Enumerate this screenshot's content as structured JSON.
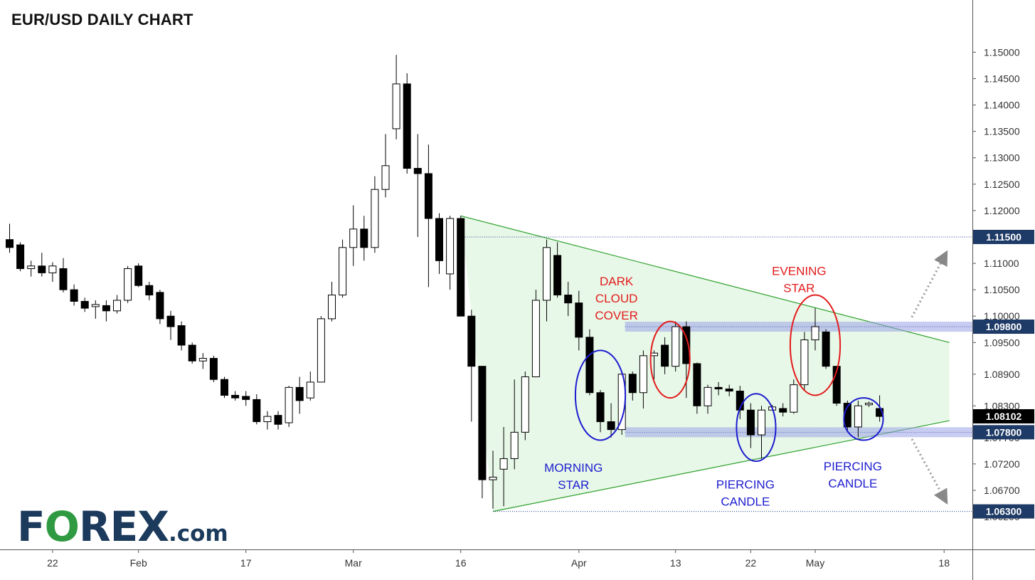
{
  "title": "EUR/USD DAILY CHART",
  "logo": {
    "part1": "F",
    "o": "O",
    "part2": "REX",
    "suffix": ".com"
  },
  "colors": {
    "bull_fill": "#ffffff",
    "bear_fill": "#000000",
    "triangle_line": "#2ca02c",
    "triangle_fill": "#e8f8e8",
    "zone": "#9aa3e6",
    "bearish_pattern": "#e21b1b",
    "bullish_pattern": "#1c1ccf",
    "price_tag": "#1e3a66",
    "last_tag": "#000000"
  },
  "chart_data": {
    "type": "candlestick",
    "title": "EUR/USD DAILY CHART",
    "ylim": [
      1.0585,
      1.1545
    ],
    "y_ticks": [
      "1.06200",
      "1.06700",
      "1.07200",
      "1.07700",
      "1.08300",
      "1.08900",
      "1.09500",
      "1.10000",
      "1.10500",
      "1.11000",
      "1.11500",
      "1.12000",
      "1.12500",
      "1.13000",
      "1.13500",
      "1.14000",
      "1.14500",
      "1.15000"
    ],
    "x_ticks": [
      "22",
      "Feb",
      "17",
      "Mar",
      "16",
      "Apr",
      "13",
      "22",
      "May",
      "18"
    ],
    "x_tick_index": [
      4,
      12,
      22,
      32,
      42,
      53,
      62,
      69,
      75,
      87
    ],
    "candles": [
      {
        "o": 1.1145,
        "h": 1.1175,
        "l": 1.112,
        "c": 1.113
      },
      {
        "o": 1.1135,
        "h": 1.114,
        "l": 1.1085,
        "c": 1.109
      },
      {
        "o": 1.109,
        "h": 1.1105,
        "l": 1.1075,
        "c": 1.1095
      },
      {
        "o": 1.1095,
        "h": 1.112,
        "l": 1.1075,
        "c": 1.1082
      },
      {
        "o": 1.1082,
        "h": 1.1102,
        "l": 1.1065,
        "c": 1.1095
      },
      {
        "o": 1.109,
        "h": 1.111,
        "l": 1.1045,
        "c": 1.105
      },
      {
        "o": 1.105,
        "h": 1.106,
        "l": 1.102,
        "c": 1.1028
      },
      {
        "o": 1.1028,
        "h": 1.1035,
        "l": 1.1008,
        "c": 1.1015
      },
      {
        "o": 1.1018,
        "h": 1.103,
        "l": 1.0995,
        "c": 1.1022
      },
      {
        "o": 1.102,
        "h": 1.103,
        "l": 1.099,
        "c": 1.101
      },
      {
        "o": 1.101,
        "h": 1.104,
        "l": 1.1005,
        "c": 1.103
      },
      {
        "o": 1.103,
        "h": 1.1095,
        "l": 1.1025,
        "c": 1.109
      },
      {
        "o": 1.1095,
        "h": 1.11,
        "l": 1.1055,
        "c": 1.1058
      },
      {
        "o": 1.1058,
        "h": 1.1065,
        "l": 1.103,
        "c": 1.104
      },
      {
        "o": 1.1045,
        "h": 1.105,
        "l": 1.0985,
        "c": 1.0995
      },
      {
        "o": 1.1,
        "h": 1.101,
        "l": 1.0955,
        "c": 1.098
      },
      {
        "o": 1.0982,
        "h": 1.099,
        "l": 1.0935,
        "c": 1.0945
      },
      {
        "o": 1.0945,
        "h": 1.095,
        "l": 1.091,
        "c": 1.0915
      },
      {
        "o": 1.0915,
        "h": 1.093,
        "l": 1.09,
        "c": 1.092
      },
      {
        "o": 1.092,
        "h": 1.0925,
        "l": 1.0875,
        "c": 1.088
      },
      {
        "o": 1.088,
        "h": 1.0885,
        "l": 1.0845,
        "c": 1.085
      },
      {
        "o": 1.085,
        "h": 1.0858,
        "l": 1.084,
        "c": 1.0845
      },
      {
        "o": 1.0848,
        "h": 1.0858,
        "l": 1.083,
        "c": 1.0842
      },
      {
        "o": 1.0842,
        "h": 1.0852,
        "l": 1.0795,
        "c": 1.08
      },
      {
        "o": 1.08,
        "h": 1.082,
        "l": 1.0785,
        "c": 1.081
      },
      {
        "o": 1.0812,
        "h": 1.082,
        "l": 1.0785,
        "c": 1.0795
      },
      {
        "o": 1.0798,
        "h": 1.0868,
        "l": 1.079,
        "c": 1.0865
      },
      {
        "o": 1.0865,
        "h": 1.0885,
        "l": 1.0815,
        "c": 1.084
      },
      {
        "o": 1.0845,
        "h": 1.0895,
        "l": 1.084,
        "c": 1.0875
      },
      {
        "o": 1.0875,
        "h": 1.1,
        "l": 1.0875,
        "c": 1.0995
      },
      {
        "o": 1.0995,
        "h": 1.1065,
        "l": 1.099,
        "c": 1.104
      },
      {
        "o": 1.104,
        "h": 1.1145,
        "l": 1.1035,
        "c": 1.113
      },
      {
        "o": 1.113,
        "h": 1.121,
        "l": 1.1095,
        "c": 1.1165
      },
      {
        "o": 1.1165,
        "h": 1.119,
        "l": 1.1105,
        "c": 1.113
      },
      {
        "o": 1.113,
        "h": 1.1265,
        "l": 1.112,
        "c": 1.124
      },
      {
        "o": 1.124,
        "h": 1.1345,
        "l": 1.1225,
        "c": 1.1285
      },
      {
        "o": 1.1355,
        "h": 1.1495,
        "l": 1.1335,
        "c": 1.144
      },
      {
        "o": 1.144,
        "h": 1.146,
        "l": 1.127,
        "c": 1.128
      },
      {
        "o": 1.128,
        "h": 1.1345,
        "l": 1.115,
        "c": 1.127
      },
      {
        "o": 1.127,
        "h": 1.1325,
        "l": 1.1055,
        "c": 1.1185
      },
      {
        "o": 1.1185,
        "h": 1.1195,
        "l": 1.108,
        "c": 1.1105
      },
      {
        "o": 1.108,
        "h": 1.119,
        "l": 1.105,
        "c": 1.1185
      },
      {
        "o": 1.1185,
        "h": 1.119,
        "l": 1.1,
        "c": 1.1
      },
      {
        "o": 1.1,
        "h": 1.1012,
        "l": 1.08,
        "c": 1.0905
      },
      {
        "o": 1.0905,
        "h": 1.0905,
        "l": 1.0655,
        "c": 1.069
      },
      {
        "o": 1.069,
        "h": 1.0745,
        "l": 1.0635,
        "c": 1.0695
      },
      {
        "o": 1.071,
        "h": 1.079,
        "l": 1.064,
        "c": 1.073
      },
      {
        "o": 1.073,
        "h": 1.088,
        "l": 1.071,
        "c": 1.078
      },
      {
        "o": 1.078,
        "h": 1.0895,
        "l": 1.0765,
        "c": 1.0885
      },
      {
        "o": 1.0885,
        "h": 1.105,
        "l": 1.0885,
        "c": 1.103
      },
      {
        "o": 1.103,
        "h": 1.1145,
        "l": 1.099,
        "c": 1.113
      },
      {
        "o": 1.1115,
        "h": 1.114,
        "l": 1.1035,
        "c": 1.104
      },
      {
        "o": 1.104,
        "h": 1.1065,
        "l": 1.1,
        "c": 1.1025
      },
      {
        "o": 1.1025,
        "h": 1.1048,
        "l": 1.0935,
        "c": 1.096
      },
      {
        "o": 1.096,
        "h": 1.0975,
        "l": 1.085,
        "c": 1.0855
      },
      {
        "o": 1.0855,
        "h": 1.086,
        "l": 1.078,
        "c": 1.08
      },
      {
        "o": 1.08,
        "h": 1.0835,
        "l": 1.077,
        "c": 1.0785
      },
      {
        "o": 1.0785,
        "h": 1.0895,
        "l": 1.0775,
        "c": 1.089
      },
      {
        "o": 1.089,
        "h": 1.0895,
        "l": 1.084,
        "c": 1.0855
      },
      {
        "o": 1.0855,
        "h": 1.0935,
        "l": 1.0825,
        "c": 1.0925
      },
      {
        "o": 1.0925,
        "h": 1.0935,
        "l": 1.088,
        "c": 1.093
      },
      {
        "o": 1.0945,
        "h": 1.096,
        "l": 1.089,
        "c": 1.0905
      },
      {
        "o": 1.0905,
        "h": 1.099,
        "l": 1.0895,
        "c": 1.098
      },
      {
        "o": 1.098,
        "h": 1.099,
        "l": 1.0845,
        "c": 1.091
      },
      {
        "o": 1.091,
        "h": 1.0912,
        "l": 1.0815,
        "c": 1.083
      },
      {
        "o": 1.083,
        "h": 1.087,
        "l": 1.0815,
        "c": 1.0865
      },
      {
        "o": 1.0865,
        "h": 1.0875,
        "l": 1.085,
        "c": 1.0862
      },
      {
        "o": 1.0862,
        "h": 1.087,
        "l": 1.0848,
        "c": 1.0858
      },
      {
        "o": 1.0858,
        "h": 1.0868,
        "l": 1.0805,
        "c": 1.0822
      },
      {
        "o": 1.0822,
        "h": 1.0835,
        "l": 1.075,
        "c": 1.0775
      },
      {
        "o": 1.0775,
        "h": 1.083,
        "l": 1.073,
        "c": 1.0822
      },
      {
        "o": 1.0822,
        "h": 1.0832,
        "l": 1.0822,
        "c": 1.0828
      },
      {
        "o": 1.0825,
        "h": 1.0835,
        "l": 1.081,
        "c": 1.0818
      },
      {
        "o": 1.0818,
        "h": 1.088,
        "l": 1.0815,
        "c": 1.087
      },
      {
        "o": 1.087,
        "h": 1.097,
        "l": 1.086,
        "c": 1.0955
      },
      {
        "o": 1.0955,
        "h": 1.1015,
        "l": 1.0935,
        "c": 1.098
      },
      {
        "o": 1.097,
        "h": 1.0975,
        "l": 1.09,
        "c": 1.0905
      },
      {
        "o": 1.0905,
        "h": 1.0905,
        "l": 1.083,
        "c": 1.0835
      },
      {
        "o": 1.0835,
        "h": 1.084,
        "l": 1.078,
        "c": 1.079
      },
      {
        "o": 1.079,
        "h": 1.084,
        "l": 1.077,
        "c": 1.083
      },
      {
        "o": 1.0832,
        "h": 1.0838,
        "l": 1.0828,
        "c": 1.0835
      },
      {
        "o": 1.0825,
        "h": 1.085,
        "l": 1.08,
        "c": 1.081
      }
    ],
    "levels": [
      {
        "value": 1.115,
        "label": "1.11500",
        "style": "dotted"
      },
      {
        "value": 1.098,
        "label": "1.09800",
        "style": "zone"
      },
      {
        "value": 1.078,
        "label": "1.07800",
        "style": "zone"
      },
      {
        "value": 1.063,
        "label": "1.06300",
        "style": "dotted"
      }
    ],
    "last_price": {
      "value": 1.08102,
      "label": "1.08102"
    },
    "triangle": {
      "upper": [
        {
          "i": 42,
          "y": 1.119
        },
        {
          "i": 87.5,
          "y": 1.095
        }
      ],
      "lower": [
        {
          "i": 45,
          "y": 1.063
        },
        {
          "i": 87.5,
          "y": 1.0802
        }
      ]
    },
    "annotations": [
      {
        "text": [
          "DARK",
          "CLOUD",
          "COVER"
        ],
        "kind": "bearish",
        "i_from": 61,
        "i_to": 62,
        "y_top": 1.099,
        "y_bottom": 1.0845,
        "label_i": 56.5,
        "label_y": 1.1058
      },
      {
        "text": [
          "EVENING",
          "STAR"
        ],
        "kind": "bearish",
        "i_from": 74,
        "i_to": 76,
        "y_top": 1.104,
        "y_bottom": 1.085,
        "label_i": 73.5,
        "label_y": 1.1078
      },
      {
        "text": [
          "MORNING",
          "STAR"
        ],
        "kind": "bullish",
        "i_from": 54,
        "i_to": 56,
        "y_top": 1.0935,
        "y_bottom": 1.0765,
        "label_i": 52.5,
        "label_y": 1.0705
      },
      {
        "text": [
          "PIERCING",
          "CANDLE"
        ],
        "kind": "bullish",
        "i_from": 69,
        "i_to": 70,
        "y_top": 1.0853,
        "y_bottom": 1.0725,
        "label_i": 68.5,
        "label_y": 1.0673
      },
      {
        "text": [
          "PIERCING",
          "CANDLE"
        ],
        "kind": "bullish",
        "i_from": 79,
        "i_to": 80,
        "y_top": 1.0845,
        "y_bottom": 1.0765,
        "label_i": 78.5,
        "label_y": 1.0708
      }
    ],
    "arrows": [
      {
        "direction": "up",
        "from_i": 84,
        "from_y": 1.0998,
        "to_i": 87.2,
        "to_y": 1.112
      },
      {
        "direction": "down",
        "from_i": 84,
        "from_y": 1.0767,
        "to_i": 87.2,
        "to_y": 1.0648
      }
    ]
  }
}
